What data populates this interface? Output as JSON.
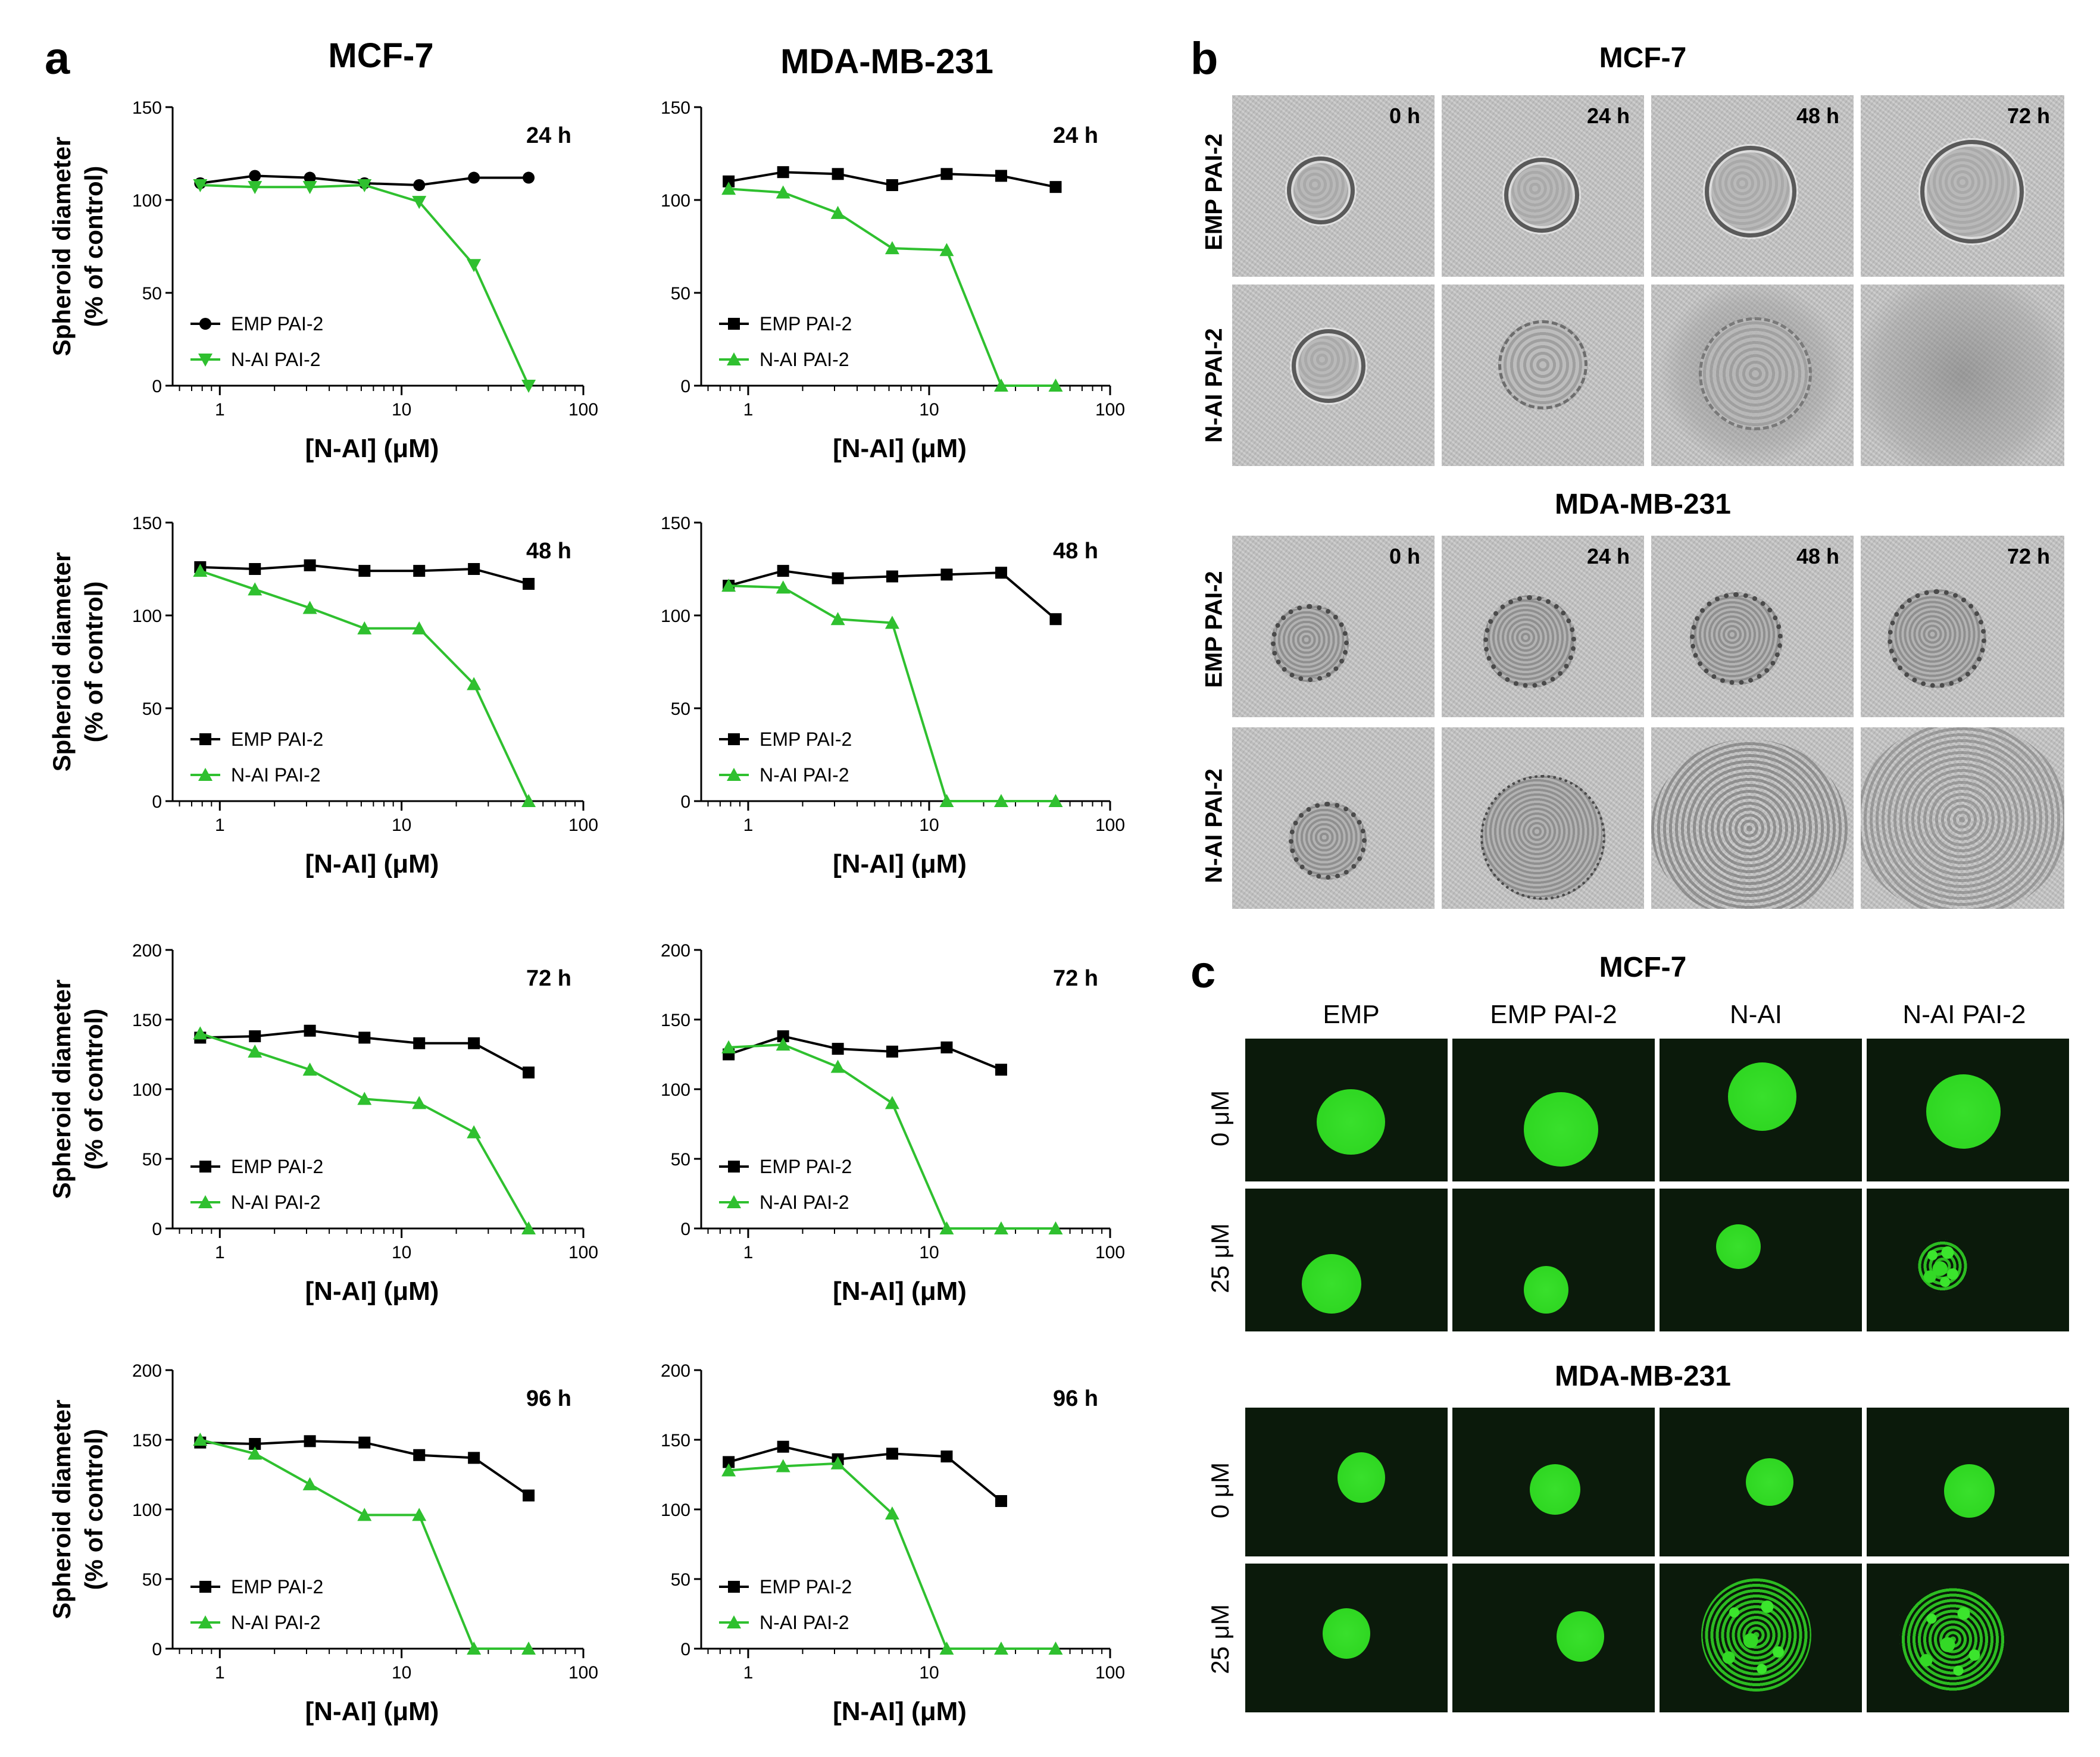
{
  "panel_a": {
    "letter": "a",
    "col_titles": [
      "MCF-7",
      "MDA-MB-231"
    ],
    "ylabel_line1": "Spheroid diameter",
    "ylabel_line2": "(% of control)",
    "xlabel": "[N-AI] (μM)",
    "x_ticks": [
      "1",
      "10",
      "100"
    ]
  },
  "chart_data": [
    {
      "type": "line",
      "cell": "MCF-7",
      "time_label": "24 h",
      "title": "",
      "xlabel": "[N-AI] (μM)",
      "ylabel": "Spheroid diameter (% of control)",
      "xscale": "log",
      "xlim": [
        0.55,
        100
      ],
      "ylim": [
        0,
        150
      ],
      "yticks": [
        0,
        50,
        100,
        150
      ],
      "legend_placement": "lower-left",
      "series": [
        {
          "name": "EMP PAI-2",
          "color": "#000000",
          "marker": "circle",
          "x": [
            0.78,
            1.56,
            3.13,
            6.25,
            12.5,
            25,
            50
          ],
          "values": [
            109,
            113,
            112,
            109,
            108,
            112,
            112
          ]
        },
        {
          "name": "N-AI PAI-2",
          "color": "#2fc02f",
          "marker": "triangle-down",
          "x": [
            0.78,
            1.56,
            3.13,
            6.25,
            12.5,
            25,
            50
          ],
          "values": [
            108,
            107,
            107,
            108,
            99,
            65,
            0
          ]
        }
      ]
    },
    {
      "type": "line",
      "cell": "MDA-MB-231",
      "time_label": "24 h",
      "title": "",
      "xlabel": "[N-AI] (μM)",
      "ylabel": "",
      "xscale": "log",
      "xlim": [
        0.55,
        100
      ],
      "ylim": [
        0,
        150
      ],
      "yticks": [
        0,
        50,
        100,
        150
      ],
      "legend_placement": "lower-left",
      "series": [
        {
          "name": "EMP PAI-2",
          "color": "#000000",
          "marker": "square",
          "x": [
            0.78,
            1.56,
            3.13,
            6.25,
            12.5,
            25,
            50
          ],
          "values": [
            110,
            115,
            114,
            108,
            114,
            113,
            107
          ]
        },
        {
          "name": "N-AI PAI-2",
          "color": "#2fc02f",
          "marker": "triangle",
          "x": [
            0.78,
            1.56,
            3.13,
            6.25,
            12.5,
            25,
            50
          ],
          "values": [
            106,
            104,
            93,
            74,
            73,
            0,
            0
          ]
        }
      ]
    },
    {
      "type": "line",
      "cell": "MCF-7",
      "time_label": "48 h",
      "title": "",
      "xlabel": "[N-AI] (μM)",
      "ylabel": "Spheroid diameter (% of control)",
      "xscale": "log",
      "xlim": [
        0.55,
        100
      ],
      "ylim": [
        0,
        150
      ],
      "yticks": [
        0,
        50,
        100,
        150
      ],
      "legend_placement": "lower-left",
      "series": [
        {
          "name": "EMP PAI-2",
          "color": "#000000",
          "marker": "square",
          "x": [
            0.78,
            1.56,
            3.13,
            6.25,
            12.5,
            25,
            50
          ],
          "values": [
            126,
            125,
            127,
            124,
            124,
            125,
            117
          ]
        },
        {
          "name": "N-AI PAI-2",
          "color": "#2fc02f",
          "marker": "triangle",
          "x": [
            0.78,
            1.56,
            3.13,
            6.25,
            12.5,
            25,
            50
          ],
          "values": [
            124,
            114,
            104,
            93,
            93,
            63,
            0
          ]
        }
      ]
    },
    {
      "type": "line",
      "cell": "MDA-MB-231",
      "time_label": "48 h",
      "title": "",
      "xlabel": "[N-AI] (μM)",
      "ylabel": "",
      "xscale": "log",
      "xlim": [
        0.55,
        100
      ],
      "ylim": [
        0,
        150
      ],
      "yticks": [
        0,
        50,
        100,
        150
      ],
      "legend_placement": "lower-left",
      "series": [
        {
          "name": "EMP PAI-2",
          "color": "#000000",
          "marker": "square",
          "x": [
            0.78,
            1.56,
            3.13,
            6.25,
            12.5,
            25,
            50
          ],
          "values": [
            116,
            124,
            120,
            121,
            122,
            123,
            98
          ]
        },
        {
          "name": "N-AI PAI-2",
          "color": "#2fc02f",
          "marker": "triangle",
          "x": [
            0.78,
            1.56,
            3.13,
            6.25,
            12.5,
            25,
            50
          ],
          "values": [
            116,
            115,
            98,
            96,
            0,
            0,
            0
          ]
        }
      ]
    },
    {
      "type": "line",
      "cell": "MCF-7",
      "time_label": "72 h",
      "title": "",
      "xlabel": "[N-AI] (μM)",
      "ylabel": "Spheroid diameter (% of control)",
      "xscale": "log",
      "xlim": [
        0.55,
        100
      ],
      "ylim": [
        0,
        200
      ],
      "yticks": [
        0,
        50,
        100,
        150,
        200
      ],
      "legend_placement": "lower-left",
      "series": [
        {
          "name": "EMP PAI-2",
          "color": "#000000",
          "marker": "square",
          "x": [
            0.78,
            1.56,
            3.13,
            6.25,
            12.5,
            25,
            50
          ],
          "values": [
            137,
            138,
            142,
            137,
            133,
            133,
            112
          ]
        },
        {
          "name": "N-AI PAI-2",
          "color": "#2fc02f",
          "marker": "triangle",
          "x": [
            0.78,
            1.56,
            3.13,
            6.25,
            12.5,
            25,
            50
          ],
          "values": [
            140,
            127,
            114,
            93,
            90,
            69,
            0
          ]
        }
      ]
    },
    {
      "type": "line",
      "cell": "MDA-MB-231",
      "time_label": "72 h",
      "title": "",
      "xlabel": "[N-AI] (μM)",
      "ylabel": "",
      "xscale": "log",
      "xlim": [
        0.55,
        100
      ],
      "ylim": [
        0,
        200
      ],
      "yticks": [
        0,
        50,
        100,
        150,
        200
      ],
      "legend_placement": "lower-left",
      "series": [
        {
          "name": "EMP PAI-2",
          "color": "#000000",
          "marker": "square",
          "x": [
            0.78,
            1.56,
            3.13,
            6.25,
            12.5,
            25
          ],
          "values": [
            125,
            138,
            129,
            127,
            130,
            114
          ]
        },
        {
          "name": "N-AI PAI-2",
          "color": "#2fc02f",
          "marker": "triangle",
          "x": [
            0.78,
            1.56,
            3.13,
            6.25,
            12.5,
            25,
            50
          ],
          "values": [
            130,
            132,
            116,
            90,
            0,
            0,
            0
          ]
        }
      ]
    },
    {
      "type": "line",
      "cell": "MCF-7",
      "time_label": "96 h",
      "title": "",
      "xlabel": "[N-AI] (μM)",
      "ylabel": "Spheroid diameter (% of control)",
      "xscale": "log",
      "xlim": [
        0.55,
        100
      ],
      "ylim": [
        0,
        200
      ],
      "yticks": [
        0,
        50,
        100,
        150,
        200
      ],
      "legend_placement": "lower-left",
      "series": [
        {
          "name": "EMP PAI-2",
          "color": "#000000",
          "marker": "square",
          "x": [
            0.78,
            1.56,
            3.13,
            6.25,
            12.5,
            25,
            50
          ],
          "values": [
            148,
            147,
            149,
            148,
            139,
            137,
            110
          ]
        },
        {
          "name": "N-AI PAI-2",
          "color": "#2fc02f",
          "marker": "triangle",
          "x": [
            0.78,
            1.56,
            3.13,
            6.25,
            12.5,
            25,
            50
          ],
          "values": [
            150,
            140,
            118,
            96,
            96,
            0,
            0
          ]
        }
      ]
    },
    {
      "type": "line",
      "cell": "MDA-MB-231",
      "time_label": "96 h",
      "title": "",
      "xlabel": "[N-AI] (μM)",
      "ylabel": "",
      "xscale": "log",
      "xlim": [
        0.55,
        100
      ],
      "ylim": [
        0,
        200
      ],
      "yticks": [
        0,
        50,
        100,
        150,
        200
      ],
      "legend_placement": "lower-left",
      "series": [
        {
          "name": "EMP PAI-2",
          "color": "#000000",
          "marker": "square",
          "x": [
            0.78,
            1.56,
            3.13,
            6.25,
            12.5,
            25
          ],
          "values": [
            134,
            145,
            136,
            140,
            138,
            106
          ]
        },
        {
          "name": "N-AI PAI-2",
          "color": "#2fc02f",
          "marker": "triangle",
          "x": [
            0.78,
            1.56,
            3.13,
            6.25,
            12.5,
            25,
            50
          ],
          "values": [
            128,
            131,
            133,
            97,
            0,
            0,
            0
          ]
        }
      ]
    }
  ],
  "panel_b": {
    "letter": "b",
    "sections": [
      {
        "title": "MCF-7",
        "times": [
          "0 h",
          "24 h",
          "48 h",
          "72 h"
        ],
        "rows": [
          "EMP PAI-2",
          "N-AI PAI-2"
        ]
      },
      {
        "title": "MDA-MB-231",
        "times": [
          "0 h",
          "24 h",
          "48 h",
          "72 h"
        ],
        "rows": [
          "EMP PAI-2",
          "N-AI PAI-2"
        ]
      }
    ]
  },
  "panel_c": {
    "letter": "c",
    "sections": [
      {
        "title": "MCF-7",
        "columns": [
          "EMP",
          "EMP PAI-2",
          "N-AI",
          "N-AI PAI-2"
        ],
        "rows": [
          "0 μM",
          "25 μM"
        ]
      },
      {
        "title": "MDA-MB-231",
        "columns": [],
        "rows": [
          "0 μM",
          "25 μM"
        ]
      }
    ]
  },
  "colors": {
    "emp": "#000000",
    "nai": "#2fc02f",
    "brightfield": "#c4c4c4",
    "fluor_bg": "#0b1a0b",
    "fluor_green": "#33d926"
  }
}
